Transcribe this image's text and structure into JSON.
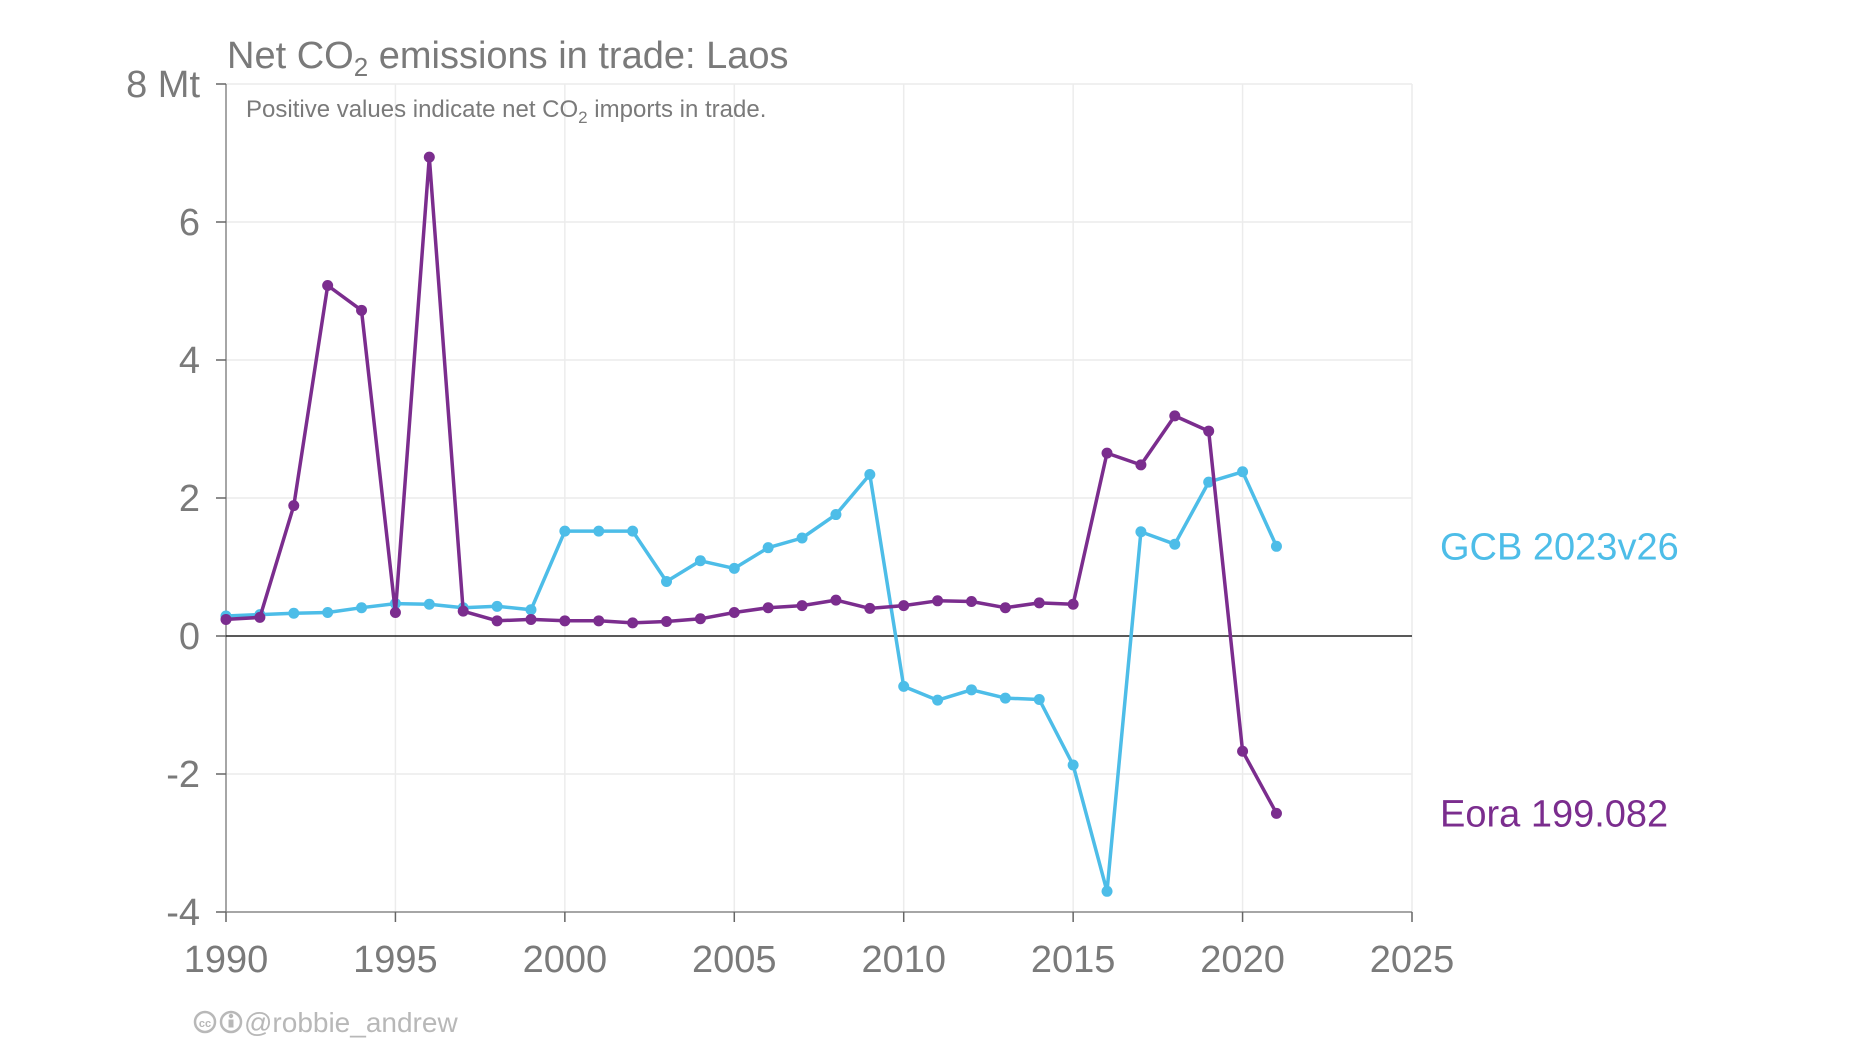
{
  "chart_data": {
    "type": "line",
    "title": {
      "pre": "Net CO",
      "sub": "2",
      "post": " emissions in trade: Laos"
    },
    "subtitle": {
      "pre": "Positive values indicate net CO",
      "sub": "2",
      "post": " imports in trade."
    },
    "y_unit": "Mt",
    "xlim": [
      1990,
      2025
    ],
    "ylim": [
      -4,
      8
    ],
    "x_ticks": [
      1990,
      1995,
      2000,
      2005,
      2010,
      2015,
      2020,
      2025
    ],
    "y_ticks": [
      {
        "value": -4,
        "label": "-4"
      },
      {
        "value": -2,
        "label": "-2"
      },
      {
        "value": 0,
        "label": "0"
      },
      {
        "value": 2,
        "label": "2"
      },
      {
        "value": 4,
        "label": "4"
      },
      {
        "value": 6,
        "label": "6"
      },
      {
        "value": 8,
        "label": "8 Mt"
      }
    ],
    "grid": true,
    "series": [
      {
        "name": "GCB 2023v26",
        "color": "#4dbde8",
        "x": [
          1990,
          1991,
          1992,
          1993,
          1994,
          1995,
          1996,
          1997,
          1998,
          1999,
          2000,
          2001,
          2002,
          2003,
          2004,
          2005,
          2006,
          2007,
          2008,
          2009,
          2010,
          2011,
          2012,
          2013,
          2014,
          2015,
          2016,
          2017,
          2018,
          2019,
          2020,
          2021
        ],
        "y": [
          0.29,
          0.31,
          0.33,
          0.34,
          0.41,
          0.47,
          0.46,
          0.41,
          0.43,
          0.38,
          1.52,
          1.52,
          1.52,
          0.79,
          1.09,
          0.98,
          1.28,
          1.42,
          1.76,
          2.34,
          -0.73,
          -0.93,
          -0.78,
          -0.9,
          -0.92,
          -1.87,
          -3.7,
          1.51,
          1.33,
          2.23,
          2.38,
          1.3
        ]
      },
      {
        "name": "Eora 199.082",
        "color": "#7b2d8e",
        "x": [
          1990,
          1991,
          1992,
          1993,
          1994,
          1995,
          1996,
          1997,
          1998,
          1999,
          2000,
          2001,
          2002,
          2003,
          2004,
          2005,
          2006,
          2007,
          2008,
          2009,
          2010,
          2011,
          2012,
          2013,
          2014,
          2015,
          2016,
          2017,
          2018,
          2019,
          2020,
          2021
        ],
        "y": [
          0.24,
          0.27,
          1.89,
          5.08,
          4.72,
          0.34,
          6.94,
          0.36,
          0.22,
          0.24,
          0.22,
          0.22,
          0.19,
          0.21,
          0.25,
          0.34,
          0.41,
          0.44,
          0.52,
          0.4,
          0.44,
          0.51,
          0.5,
          0.41,
          0.48,
          0.46,
          2.65,
          2.48,
          3.19,
          2.97,
          -1.67,
          -2.57
        ]
      }
    ]
  },
  "credit": "@robbie_andrew"
}
